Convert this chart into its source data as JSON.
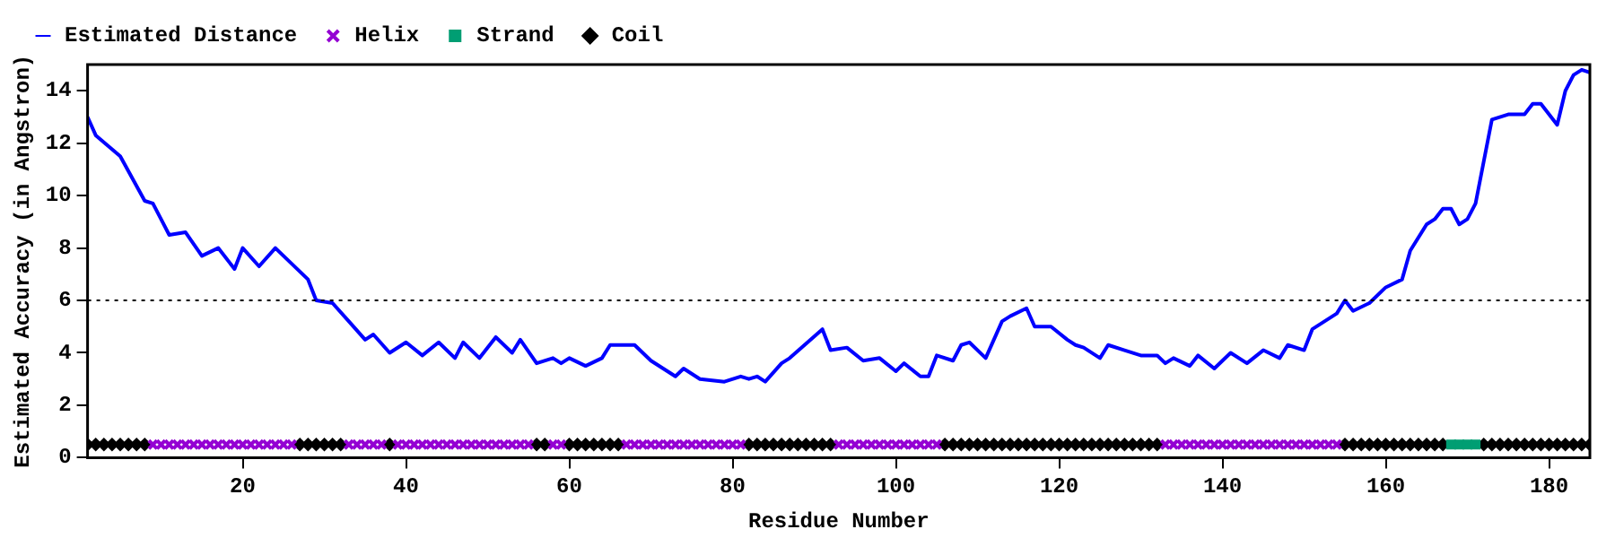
{
  "chart_data": {
    "type": "line",
    "xlabel": "Residue Number",
    "ylabel": "Estimated Accuracy (in Angstron)",
    "xlim": [
      1,
      185
    ],
    "xticks": [
      20,
      40,
      60,
      80,
      100,
      120,
      140,
      160,
      180
    ],
    "ylim": [
      0,
      15
    ],
    "yticks": [
      0,
      2,
      4,
      6,
      8,
      10,
      12,
      14
    ],
    "grid": false,
    "legend": "top",
    "ref_lines": [
      {
        "axis": "y",
        "value": 6,
        "color": "#000000",
        "line_style": "dotted"
      }
    ],
    "series": [
      {
        "name": "Estimated Distance",
        "type": "line",
        "color": "#0000ff",
        "marker": "none",
        "line_style": "solid",
        "x": [
          1,
          2,
          5,
          8,
          9,
          11,
          13,
          15,
          17,
          19,
          20,
          22,
          24,
          26,
          28,
          29,
          31,
          33,
          35,
          36,
          38,
          40,
          42,
          44,
          46,
          47,
          49,
          51,
          53,
          54,
          56,
          58,
          59,
          60,
          62,
          64,
          65,
          68,
          70,
          73,
          74,
          76,
          79,
          81,
          82,
          83,
          84,
          86,
          87,
          91,
          92,
          94,
          96,
          98,
          100,
          101,
          103,
          104,
          105,
          107,
          108,
          109,
          111,
          113,
          114,
          116,
          117,
          119,
          121,
          122,
          123,
          125,
          126,
          128,
          130,
          132,
          133,
          134,
          136,
          137,
          139,
          141,
          143,
          145,
          147,
          148,
          150,
          151,
          154,
          155,
          156,
          158,
          160,
          162,
          163,
          165,
          166,
          167,
          168,
          169,
          170,
          171,
          172,
          173,
          175,
          177,
          178,
          179,
          181,
          182,
          183,
          184,
          185
        ],
        "values": [
          13.0,
          12.3,
          11.5,
          9.8,
          9.7,
          8.5,
          8.6,
          7.7,
          8.0,
          7.2,
          8.0,
          7.3,
          8.0,
          7.4,
          6.8,
          6.0,
          5.9,
          5.2,
          4.5,
          4.7,
          4.0,
          4.4,
          3.9,
          4.4,
          3.8,
          4.4,
          3.8,
          4.6,
          4.0,
          4.5,
          3.6,
          3.8,
          3.6,
          3.8,
          3.5,
          3.8,
          4.3,
          4.3,
          3.7,
          3.1,
          3.4,
          3.0,
          2.9,
          3.1,
          3.0,
          3.1,
          2.9,
          3.6,
          3.8,
          4.9,
          4.1,
          4.2,
          3.7,
          3.8,
          3.3,
          3.6,
          3.1,
          3.1,
          3.9,
          3.7,
          4.3,
          4.4,
          3.8,
          5.2,
          5.4,
          5.7,
          5.0,
          5.0,
          4.5,
          4.3,
          4.2,
          3.8,
          4.3,
          4.1,
          3.9,
          3.9,
          3.6,
          3.8,
          3.5,
          3.9,
          3.4,
          4.0,
          3.6,
          4.1,
          3.8,
          4.3,
          4.1,
          4.9,
          5.5,
          6.0,
          5.6,
          5.9,
          6.5,
          6.8,
          7.9,
          8.9,
          9.1,
          9.5,
          9.5,
          8.9,
          9.1,
          9.7,
          11.3,
          12.9,
          13.1,
          13.1,
          13.5,
          13.5,
          12.7,
          14.0,
          14.6,
          14.8,
          14.7
        ]
      },
      {
        "name": "Helix",
        "type": "scatter",
        "color": "#9400d3",
        "marker": "cross",
        "x": [
          9,
          10,
          11,
          12,
          13,
          14,
          15,
          16,
          17,
          18,
          19,
          20,
          21,
          22,
          23,
          24,
          25,
          26,
          33,
          34,
          35,
          36,
          37,
          39,
          40,
          41,
          42,
          43,
          44,
          45,
          46,
          47,
          48,
          49,
          50,
          51,
          52,
          53,
          54,
          55,
          58,
          59,
          67,
          68,
          69,
          70,
          71,
          72,
          73,
          74,
          75,
          76,
          77,
          78,
          79,
          80,
          81,
          93,
          94,
          95,
          96,
          97,
          98,
          99,
          100,
          101,
          102,
          103,
          104,
          105,
          133,
          134,
          135,
          136,
          137,
          138,
          139,
          140,
          141,
          142,
          143,
          144,
          145,
          146,
          147,
          148,
          149,
          150,
          151,
          152,
          153,
          154
        ],
        "values": [
          0.5,
          0.5,
          0.5,
          0.5,
          0.5,
          0.5,
          0.5,
          0.5,
          0.5,
          0.5,
          0.5,
          0.5,
          0.5,
          0.5,
          0.5,
          0.5,
          0.5,
          0.5,
          0.5,
          0.5,
          0.5,
          0.5,
          0.5,
          0.5,
          0.5,
          0.5,
          0.5,
          0.5,
          0.5,
          0.5,
          0.5,
          0.5,
          0.5,
          0.5,
          0.5,
          0.5,
          0.5,
          0.5,
          0.5,
          0.5,
          0.5,
          0.5,
          0.5,
          0.5,
          0.5,
          0.5,
          0.5,
          0.5,
          0.5,
          0.5,
          0.5,
          0.5,
          0.5,
          0.5,
          0.5,
          0.5,
          0.5,
          0.5,
          0.5,
          0.5,
          0.5,
          0.5,
          0.5,
          0.5,
          0.5,
          0.5,
          0.5,
          0.5,
          0.5,
          0.5,
          0.5,
          0.5,
          0.5,
          0.5,
          0.5,
          0.5,
          0.5,
          0.5,
          0.5,
          0.5,
          0.5,
          0.5,
          0.5,
          0.5,
          0.5,
          0.5,
          0.5,
          0.5,
          0.5,
          0.5,
          0.5,
          0.5
        ]
      },
      {
        "name": "Strand",
        "type": "scatter",
        "color": "#009e73",
        "marker": "square",
        "x": [
          168,
          169,
          170,
          171
        ],
        "values": [
          0.5,
          0.5,
          0.5,
          0.5
        ]
      },
      {
        "name": "Coil",
        "type": "scatter",
        "color": "#000000",
        "marker": "diamond",
        "x": [
          1,
          2,
          3,
          4,
          5,
          6,
          7,
          8,
          27,
          28,
          29,
          30,
          31,
          32,
          38,
          56,
          57,
          60,
          61,
          62,
          63,
          64,
          65,
          66,
          82,
          83,
          84,
          85,
          86,
          87,
          88,
          89,
          90,
          91,
          92,
          106,
          107,
          108,
          109,
          110,
          111,
          112,
          113,
          114,
          115,
          116,
          117,
          118,
          119,
          120,
          121,
          122,
          123,
          124,
          125,
          126,
          127,
          128,
          129,
          130,
          131,
          132,
          155,
          156,
          157,
          158,
          159,
          160,
          161,
          162,
          163,
          164,
          165,
          166,
          167,
          172,
          173,
          174,
          175,
          176,
          177,
          178,
          179,
          180,
          181,
          182,
          183,
          184,
          185
        ],
        "values": [
          0.5,
          0.5,
          0.5,
          0.5,
          0.5,
          0.5,
          0.5,
          0.5,
          0.5,
          0.5,
          0.5,
          0.5,
          0.5,
          0.5,
          0.5,
          0.5,
          0.5,
          0.5,
          0.5,
          0.5,
          0.5,
          0.5,
          0.5,
          0.5,
          0.5,
          0.5,
          0.5,
          0.5,
          0.5,
          0.5,
          0.5,
          0.5,
          0.5,
          0.5,
          0.5,
          0.5,
          0.5,
          0.5,
          0.5,
          0.5,
          0.5,
          0.5,
          0.5,
          0.5,
          0.5,
          0.5,
          0.5,
          0.5,
          0.5,
          0.5,
          0.5,
          0.5,
          0.5,
          0.5,
          0.5,
          0.5,
          0.5,
          0.5,
          0.5,
          0.5,
          0.5,
          0.5,
          0.5,
          0.5,
          0.5,
          0.5,
          0.5,
          0.5,
          0.5,
          0.5,
          0.5,
          0.5,
          0.5,
          0.5,
          0.5,
          0.5,
          0.5,
          0.5,
          0.5,
          0.5,
          0.5,
          0.5,
          0.5,
          0.5,
          0.5,
          0.5,
          0.5,
          0.5,
          0.5
        ]
      }
    ]
  }
}
